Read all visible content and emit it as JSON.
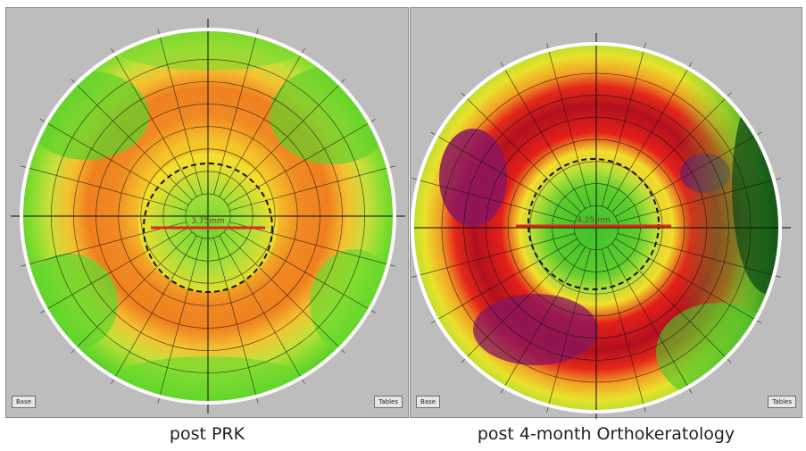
{
  "panels": [
    {
      "caption": "post PRK",
      "measurement": "3.75mm",
      "buttons": {
        "left": "Base",
        "right": "Tables"
      },
      "colors": {
        "outer": "#5cd82a",
        "mid_outer": "#b8e33a",
        "ring": "#f07a1e",
        "inner_ring": "#ffd12a",
        "center": "#9be13a",
        "core": "#6fd52e",
        "line": "#e0261c"
      }
    },
    {
      "caption": "post 4-month Orthokeratology",
      "measurement": "4.25mm",
      "buttons": {
        "left": "Base",
        "right": "Tables"
      },
      "colors": {
        "outer": "#1f6a1a",
        "mid_outer": "#7cd52f",
        "yellow": "#f5e62c",
        "ring": "#d0121a",
        "deep_ring": "#8a1560",
        "inner_ring": "#f3d42a",
        "center": "#4cc82b",
        "line": "#e0261c"
      }
    }
  ]
}
